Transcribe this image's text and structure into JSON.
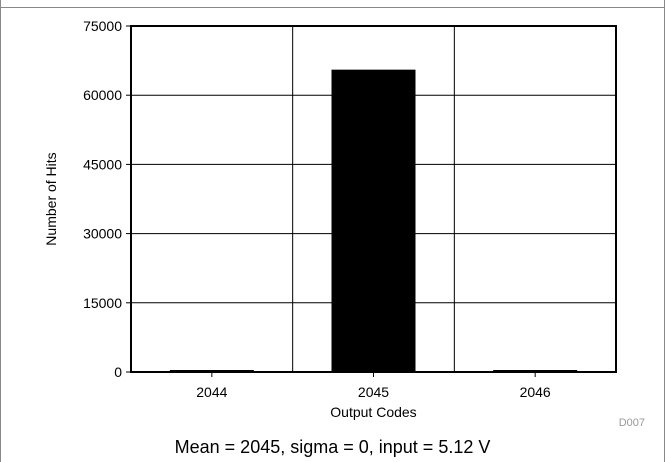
{
  "chart_data": {
    "type": "bar",
    "categories": [
      "2044",
      "2045",
      "2046"
    ],
    "values": [
      0,
      65536,
      0
    ],
    "xlabel": "Output Codes",
    "ylabel": "Number of Hits",
    "ylim": [
      0,
      75000
    ],
    "yticks": [
      0,
      15000,
      30000,
      45000,
      60000,
      75000
    ],
    "grid": true,
    "bar_color": "#000000"
  },
  "figure_id": "D007",
  "caption": "Mean = 2045, sigma = 0, input = 5.12 V"
}
